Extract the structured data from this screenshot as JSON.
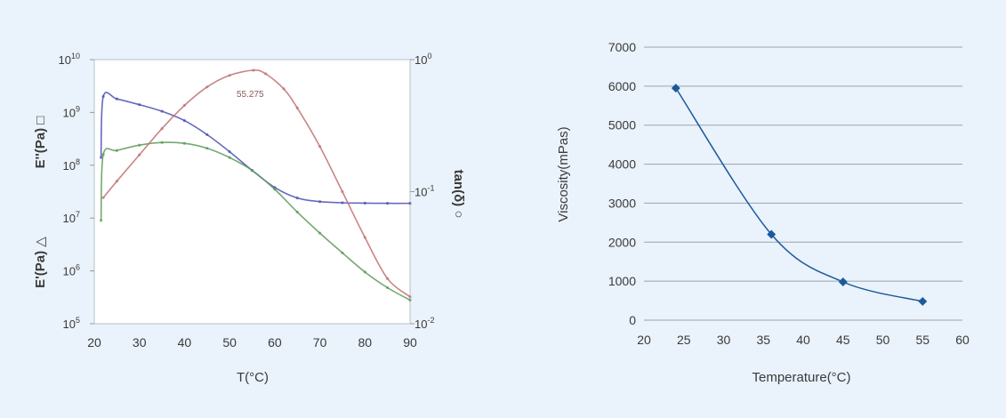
{
  "chart_data": [
    {
      "type": "line",
      "title": "",
      "xlabel": "T(°C)",
      "xlim": [
        20,
        90
      ],
      "x_ticks": [
        "20",
        "30",
        "40",
        "50",
        "60",
        "70",
        "80",
        "90"
      ],
      "left_axis": {
        "scale": "log",
        "ylim": [
          100000,
          10000000000
        ],
        "labels": [
          {
            "text": "E''(Pa) □",
            "color": "#2e7d32"
          },
          {
            "text": "E'(Pa) △",
            "color": "#3a3aa0"
          }
        ],
        "ticks": [
          {
            "base": "10",
            "exp": "5"
          },
          {
            "base": "10",
            "exp": "6"
          },
          {
            "base": "10",
            "exp": "7"
          },
          {
            "base": "10",
            "exp": "8"
          },
          {
            "base": "10",
            "exp": "9"
          },
          {
            "base": "10",
            "exp": "10"
          }
        ]
      },
      "right_axis": {
        "scale": "log",
        "ylim": [
          0.01,
          1
        ],
        "label": "tan(δ) ○",
        "label_color": "#9b2335",
        "ticks": [
          {
            "base": "10",
            "exp": "-2"
          },
          {
            "base": "10",
            "exp": "-1"
          },
          {
            "base": "10",
            "exp": "0"
          }
        ]
      },
      "annotation": "55.275",
      "grid": false,
      "series": [
        {
          "axis": "left",
          "color": "#4b4fb0",
          "x": [
            21.5,
            22,
            25,
            30,
            35,
            40,
            45,
            50,
            55,
            60,
            65,
            70,
            75,
            80,
            85,
            90
          ],
          "y": [
            140000000,
            2000000000,
            1800000000,
            1400000000,
            1050000000,
            700000000,
            380000000,
            180000000,
            80000000,
            38000000,
            24000000,
            20500000,
            19500000,
            19200000,
            19000000,
            19000000
          ]
        },
        {
          "axis": "left",
          "color": "#5a9a5a",
          "x": [
            21.5,
            22,
            25,
            30,
            35,
            40,
            45,
            50,
            55,
            60,
            65,
            70,
            75,
            80,
            85,
            90
          ],
          "y": [
            9000000,
            160000000,
            190000000,
            240000000,
            270000000,
            260000000,
            210000000,
            140000000,
            80000000,
            35000000,
            13000000,
            5200000,
            2200000,
            950000,
            480000,
            280000
          ]
        },
        {
          "axis": "right",
          "color": "#c07070",
          "x": [
            22,
            25,
            30,
            35,
            40,
            45,
            50,
            55.275,
            58,
            62,
            65,
            70,
            75,
            80,
            85,
            90
          ],
          "y": [
            0.09,
            0.12,
            0.19,
            0.3,
            0.45,
            0.62,
            0.76,
            0.83,
            0.78,
            0.6,
            0.43,
            0.22,
            0.1,
            0.045,
            0.022,
            0.016
          ]
        }
      ]
    },
    {
      "type": "line",
      "title": "",
      "xlabel": "Temperature(°C)",
      "ylabel": "Viscosity(mPas)",
      "xlim": [
        20,
        60
      ],
      "ylim": [
        0,
        7000
      ],
      "x_ticks": [
        "20",
        "25",
        "30",
        "35",
        "40",
        "45",
        "50",
        "55",
        "60"
      ],
      "y_ticks": [
        "0",
        "1000",
        "2000",
        "3000",
        "4000",
        "5000",
        "6000",
        "7000"
      ],
      "grid": true,
      "series": [
        {
          "color": "#1a5a9a",
          "x": [
            24,
            36,
            45,
            55
          ],
          "y": [
            5950,
            2200,
            980,
            480
          ]
        }
      ]
    }
  ]
}
